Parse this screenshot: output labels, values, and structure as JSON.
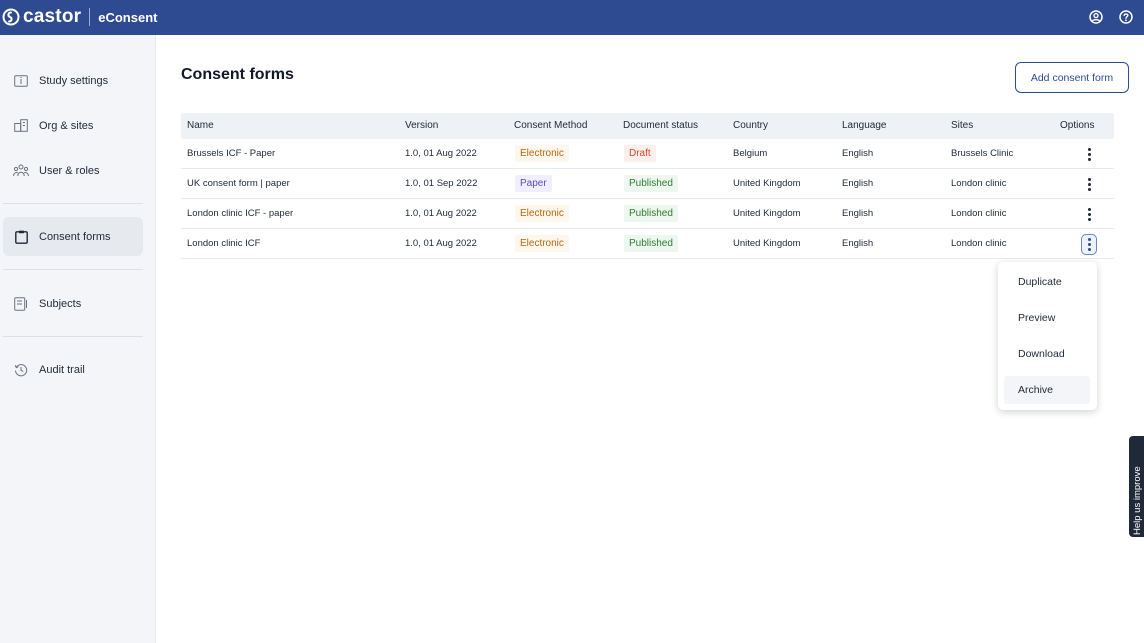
{
  "header": {
    "brand": "castor",
    "product": "eConsent",
    "icons": [
      "account-icon",
      "help-icon"
    ]
  },
  "sidebar": {
    "items": [
      {
        "label": "Study settings",
        "icon": "info-icon"
      },
      {
        "label": "Org & sites",
        "icon": "building-icon"
      },
      {
        "label": "User & roles",
        "icon": "users-icon"
      },
      {
        "label": "Consent forms",
        "icon": "clipboard-icon",
        "active": true
      },
      {
        "label": "Subjects",
        "icon": "subjects-icon"
      },
      {
        "label": "Audit trail",
        "icon": "history-icon"
      }
    ]
  },
  "main": {
    "title": "Consent forms",
    "add_button": "Add consent form",
    "columns": [
      "Name",
      "Version",
      "Consent Method",
      "Document status",
      "Country",
      "Language",
      "Sites",
      "Options"
    ],
    "rows": [
      {
        "name": "Brussels ICF - Paper",
        "version": "1.0, 01 Aug 2022",
        "method": "Electronic",
        "status": "Draft",
        "country": "Belgium",
        "language": "English",
        "sites": "Brussels Clinic"
      },
      {
        "name": "UK consent form | paper",
        "version": "1.0, 01 Sep 2022",
        "method": "Paper",
        "status": "Published",
        "country": "United Kingdom",
        "language": "English",
        "sites": "London clinic"
      },
      {
        "name": "London clinic ICF - paper",
        "version": "1.0, 01 Aug 2022",
        "method": "Electronic",
        "status": "Published",
        "country": "United Kingdom",
        "language": "English",
        "sites": "London clinic"
      },
      {
        "name": "London clinic ICF",
        "version": "1.0, 01 Aug 2022",
        "method": "Electronic",
        "status": "Published",
        "country": "United Kingdom",
        "language": "English",
        "sites": "London clinic"
      }
    ]
  },
  "options_menu": {
    "items": [
      "Duplicate",
      "Preview",
      "Download",
      "Archive"
    ]
  },
  "feedback_tab": "Help us improve",
  "colors": {
    "brand": "#2e4b91",
    "electronic": "#b8650f",
    "paper": "#5b4bc4",
    "draft": "#d04a2a",
    "published": "#2e7d32"
  }
}
